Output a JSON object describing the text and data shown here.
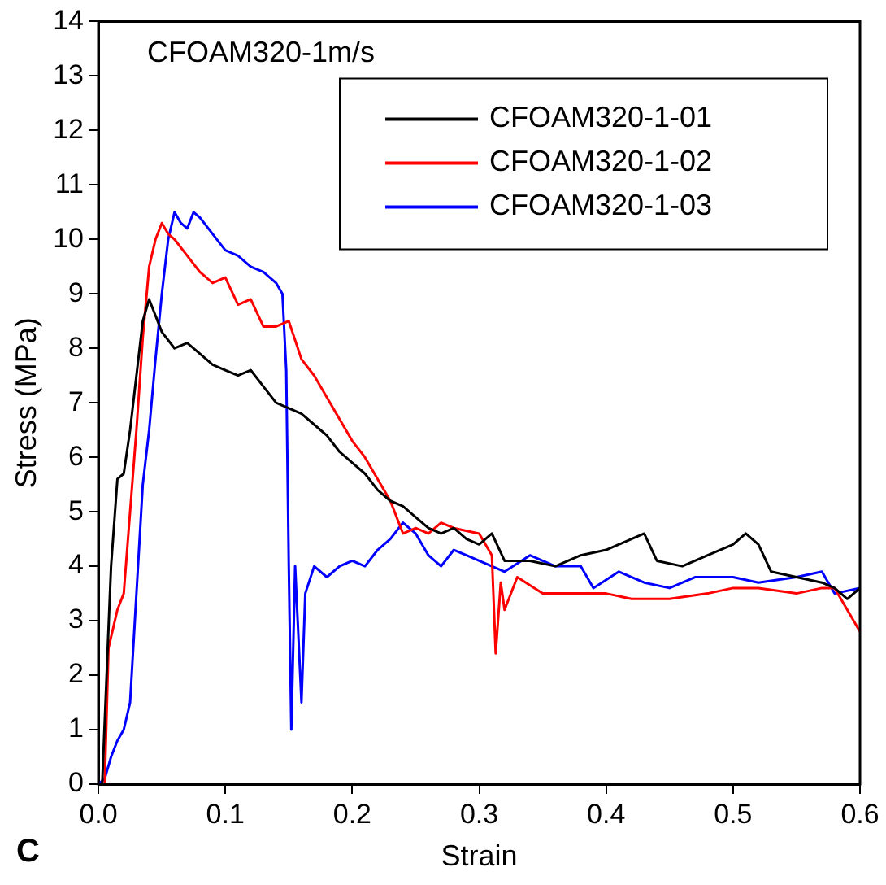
{
  "chart_data": {
    "type": "line",
    "title": "CFOAM320-1m/s",
    "xlabel": "Strain",
    "ylabel": "Stress (MPa)",
    "annotations": [
      "C"
    ],
    "xlim": [
      0,
      0.6
    ],
    "xticks": [
      {
        "value": 0,
        "label": "0.0"
      },
      0.1,
      0.2,
      0.3,
      0.4,
      0.5,
      0.6
    ],
    "ylim": [
      0,
      14
    ],
    "yticks": [
      0,
      1,
      2,
      3,
      4,
      5,
      6,
      7,
      8,
      9,
      10,
      11,
      12,
      13,
      14
    ],
    "grid": false,
    "legend": "top right",
    "marker": "none",
    "line_style": "solid",
    "series": [
      {
        "name": "CFOAM320-1-01",
        "color": "#000000",
        "x": [
          0.003,
          0.01,
          0.015,
          0.02,
          0.025,
          0.03,
          0.035,
          0.04,
          0.045,
          0.05,
          0.06,
          0.07,
          0.08,
          0.09,
          0.1,
          0.11,
          0.12,
          0.13,
          0.14,
          0.15,
          0.16,
          0.17,
          0.18,
          0.19,
          0.2,
          0.21,
          0.22,
          0.23,
          0.24,
          0.25,
          0.26,
          0.27,
          0.28,
          0.29,
          0.3,
          0.31,
          0.32,
          0.34,
          0.36,
          0.38,
          0.4,
          0.42,
          0.43,
          0.44,
          0.46,
          0.48,
          0.5,
          0.51,
          0.52,
          0.53,
          0.55,
          0.57,
          0.58,
          0.59,
          0.6
        ],
        "values": [
          0,
          4,
          5.6,
          5.7,
          6.5,
          7.5,
          8.5,
          8.9,
          8.6,
          8.3,
          8,
          8.1,
          7.9,
          7.7,
          7.6,
          7.5,
          7.6,
          7.3,
          7,
          6.9,
          6.8,
          6.6,
          6.4,
          6.1,
          5.9,
          5.7,
          5.4,
          5.2,
          5.1,
          4.9,
          4.7,
          4.6,
          4.7,
          4.5,
          4.4,
          4.6,
          4.1,
          4.1,
          4,
          4.2,
          4.3,
          4.5,
          4.6,
          4.1,
          4,
          4.2,
          4.4,
          4.6,
          4.4,
          3.9,
          3.8,
          3.7,
          3.6,
          3.4,
          3.6
        ]
      },
      {
        "name": "CFOAM320-1-02",
        "color": "#ff0000",
        "x": [
          0.005,
          0.008,
          0.015,
          0.02,
          0.025,
          0.03,
          0.035,
          0.04,
          0.045,
          0.05,
          0.055,
          0.06,
          0.07,
          0.08,
          0.09,
          0.1,
          0.11,
          0.12,
          0.13,
          0.14,
          0.15,
          0.16,
          0.17,
          0.18,
          0.19,
          0.2,
          0.21,
          0.22,
          0.23,
          0.24,
          0.25,
          0.26,
          0.27,
          0.28,
          0.3,
          0.31,
          0.313,
          0.317,
          0.32,
          0.33,
          0.35,
          0.37,
          0.4,
          0.42,
          0.45,
          0.48,
          0.5,
          0.52,
          0.55,
          0.57,
          0.58,
          0.59,
          0.6
        ],
        "values": [
          0,
          2.5,
          3.2,
          3.5,
          5,
          6.5,
          8.2,
          9.5,
          10,
          10.3,
          10.1,
          10,
          9.7,
          9.4,
          9.2,
          9.3,
          8.8,
          8.9,
          8.4,
          8.4,
          8.5,
          7.8,
          7.5,
          7.1,
          6.7,
          6.3,
          6,
          5.6,
          5.2,
          4.6,
          4.7,
          4.6,
          4.8,
          4.7,
          4.6,
          4.2,
          2.4,
          3.7,
          3.2,
          3.8,
          3.5,
          3.5,
          3.5,
          3.4,
          3.4,
          3.5,
          3.6,
          3.6,
          3.5,
          3.6,
          3.6,
          3.2,
          2.8
        ]
      },
      {
        "name": "CFOAM320-1-03",
        "color": "#0000ff",
        "x": [
          0,
          0.005,
          0.01,
          0.015,
          0.02,
          0.025,
          0.03,
          0.035,
          0.04,
          0.045,
          0.05,
          0.055,
          0.06,
          0.065,
          0.07,
          0.075,
          0.08,
          0.09,
          0.1,
          0.11,
          0.12,
          0.13,
          0.14,
          0.145,
          0.148,
          0.15,
          0.152,
          0.155,
          0.16,
          0.163,
          0.17,
          0.18,
          0.19,
          0.2,
          0.21,
          0.22,
          0.23,
          0.24,
          0.25,
          0.26,
          0.27,
          0.28,
          0.29,
          0.3,
          0.32,
          0.34,
          0.36,
          0.38,
          0.39,
          0.41,
          0.43,
          0.45,
          0.47,
          0.5,
          0.52,
          0.55,
          0.57,
          0.58,
          0.6
        ],
        "values": [
          0,
          0.1,
          0.5,
          0.8,
          1,
          1.5,
          3.5,
          5.5,
          6.5,
          7.8,
          9,
          10,
          10.5,
          10.3,
          10.2,
          10.5,
          10.4,
          10.1,
          9.8,
          9.7,
          9.5,
          9.4,
          9.2,
          9,
          7.6,
          4,
          1,
          4,
          1.5,
          3.5,
          4,
          3.8,
          4,
          4.1,
          4,
          4.3,
          4.5,
          4.8,
          4.6,
          4.2,
          4,
          4.3,
          4.2,
          4.1,
          3.9,
          4.2,
          4,
          4,
          3.6,
          3.9,
          3.7,
          3.6,
          3.8,
          3.8,
          3.7,
          3.8,
          3.9,
          3.5,
          3.6
        ]
      }
    ]
  }
}
